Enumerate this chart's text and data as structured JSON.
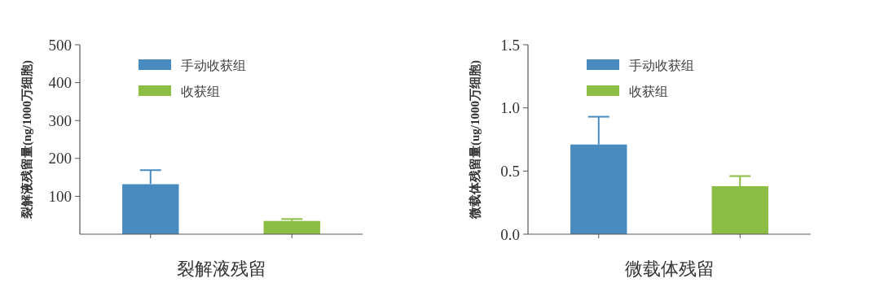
{
  "chart_data": [
    {
      "type": "bar",
      "xlabel": "裂解液残留",
      "ylabel": "裂解液残留量(ng/1000万细胞)",
      "categories": [
        null,
        null
      ],
      "ylim": [
        0,
        500
      ],
      "yticks": [
        100,
        200,
        300,
        400,
        500
      ],
      "legend": "top",
      "grid": false,
      "series": [
        {
          "name": "手动收获组",
          "color": "#4a8bbf",
          "values": [
            132,
            null
          ],
          "errors": [
            [
              132,
              169
            ],
            null
          ]
        },
        {
          "name": "收获组",
          "color": "#8cbd44",
          "values": [
            null,
            35
          ],
          "errors": [
            null,
            [
              35,
              40
            ]
          ]
        }
      ]
    },
    {
      "type": "bar",
      "xlabel": "微载体残留",
      "ylabel": "微载体残留量(ug/1000万细胞)",
      "categories": [
        null,
        null
      ],
      "ylim": [
        0,
        1.5
      ],
      "yticks": [
        {
          "value": 0,
          "label": "0.0"
        },
        0.5,
        {
          "value": 1,
          "label": "1.0"
        },
        1.5
      ],
      "legend": "top",
      "grid": false,
      "series": [
        {
          "name": "手动收获组",
          "color": "#4a8bbf",
          "values": [
            0.71,
            null
          ],
          "errors": [
            [
              0.71,
              0.93
            ],
            null
          ]
        },
        {
          "name": "收获组",
          "color": "#8cbd44",
          "values": [
            null,
            0.38
          ],
          "errors": [
            null,
            [
              0.38,
              0.46
            ]
          ]
        }
      ]
    }
  ]
}
